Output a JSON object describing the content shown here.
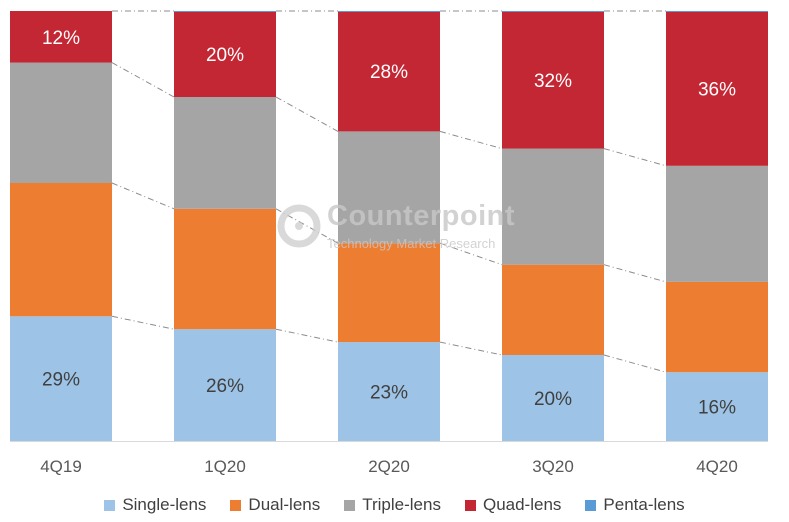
{
  "chart_data": {
    "type": "bar",
    "stacked": true,
    "categories": [
      "4Q19",
      "1Q20",
      "2Q20",
      "3Q20",
      "4Q20"
    ],
    "series": [
      {
        "name": "Single-lens",
        "color": "#9DC3E6",
        "values": [
          29,
          26,
          23,
          20,
          16
        ],
        "labels": [
          "29%",
          "26%",
          "23%",
          "20%",
          "16%"
        ]
      },
      {
        "name": "Dual-lens",
        "color": "#ED7D31",
        "values": [
          31,
          28,
          23,
          21,
          21
        ],
        "labels": []
      },
      {
        "name": "Triple-lens",
        "color": "#A5A5A5",
        "values": [
          28,
          26,
          26,
          27,
          27
        ],
        "labels": []
      },
      {
        "name": "Quad-lens",
        "color": "#C42734",
        "values": [
          12,
          20,
          28,
          32,
          36
        ],
        "labels": [
          "12%",
          "20%",
          "28%",
          "32%",
          "36%"
        ]
      },
      {
        "name": "Penta-lens",
        "color": "#5B9BD5",
        "values": [
          0,
          0.3,
          0.3,
          0.3,
          0.3
        ],
        "labels": []
      }
    ],
    "ylim": [
      0,
      100
    ],
    "grid": false,
    "legend_position": "bottom",
    "connector_lines": true
  },
  "watermark": {
    "title": "Counterpoint",
    "subtitle": "Technology Market Research"
  }
}
